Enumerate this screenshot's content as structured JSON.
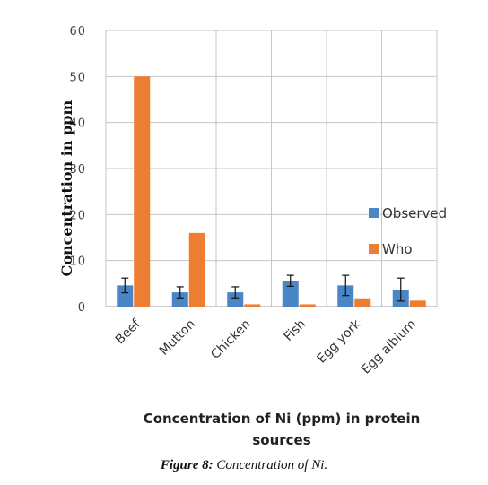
{
  "chart_data": {
    "type": "bar",
    "categories": [
      "Beef",
      "Mutton",
      "Chicken",
      "Fish",
      "Egg york",
      "Egg albium"
    ],
    "series": [
      {
        "name": "Observed",
        "color": "#4a86c5",
        "values": [
          4.6,
          3.1,
          3.1,
          5.6,
          4.6,
          3.7
        ],
        "error": [
          1.6,
          1.2,
          1.2,
          1.2,
          2.2,
          2.5
        ]
      },
      {
        "name": "Who",
        "color": "#ed7d31",
        "values": [
          50,
          16,
          0.5,
          0.5,
          1.8,
          1.3
        ]
      }
    ],
    "ylim": [
      0,
      60
    ],
    "yticks": [
      "0",
      "10",
      "20",
      "30",
      "40",
      "50",
      "60"
    ],
    "ylabel": "Concentration in ppm",
    "xlabel": [
      "Concentration of Ni (ppm) in protein",
      "sources"
    ],
    "grid": true,
    "legend_position": "right"
  },
  "caption": {
    "label": "Figure 8:",
    "text": " Concentration of Ni."
  }
}
